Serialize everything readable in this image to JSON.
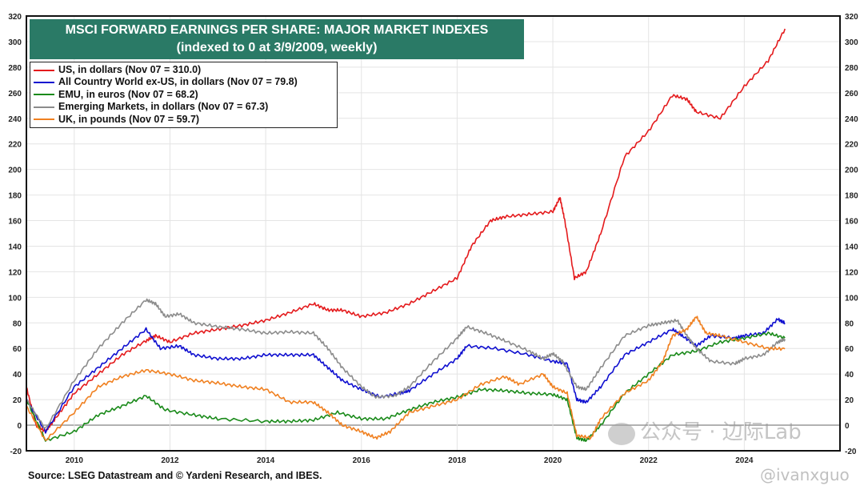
{
  "chart_data": {
    "type": "line",
    "title": "MSCI FORWARD EARNINGS PER SHARE: MAJOR MARKET INDEXES",
    "subtitle": "(indexed to 0 at 3/9/2009, weekly)",
    "xlabel": "",
    "ylabel": "",
    "xlim": [
      2009,
      2026
    ],
    "ylim": [
      -20,
      320
    ],
    "x_ticks": [
      "2010",
      "2012",
      "2014",
      "2016",
      "2018",
      "2020",
      "2022",
      "2024"
    ],
    "y_ticks": [
      -20,
      0,
      20,
      40,
      60,
      80,
      100,
      120,
      140,
      160,
      180,
      200,
      220,
      240,
      260,
      280,
      300,
      320
    ],
    "grid": true,
    "legend_placement": "top-left",
    "series": [
      {
        "name": "US, in dollars (Nov 07 = 310.0)",
        "color": "#e41a1c",
        "x": [
          2009.0,
          2009.2,
          2009.4,
          2009.6,
          2010,
          2010.5,
          2011,
          2011.5,
          2011.7,
          2012,
          2012.5,
          2013,
          2013.5,
          2014,
          2014.5,
          2015,
          2015.3,
          2015.6,
          2016,
          2016.5,
          2017,
          2017.5,
          2018,
          2018.3,
          2018.7,
          2019,
          2019.5,
          2020,
          2020.15,
          2020.25,
          2020.45,
          2020.7,
          2021,
          2021.5,
          2022,
          2022.5,
          2022.8,
          2023,
          2023.5,
          2024,
          2024.5,
          2024.85
        ],
        "values": [
          30,
          0,
          -5,
          5,
          25,
          40,
          55,
          66,
          70,
          65,
          72,
          75,
          78,
          82,
          88,
          95,
          90,
          90,
          85,
          88,
          95,
          105,
          115,
          140,
          160,
          163,
          165,
          167,
          178,
          160,
          115,
          120,
          150,
          210,
          230,
          258,
          255,
          245,
          240,
          265,
          285,
          310
        ]
      },
      {
        "name": "All Country World ex-US, in dollars (Nov 07 = 79.8)",
        "color": "#1010d0",
        "x": [
          2009.0,
          2009.4,
          2010,
          2010.5,
          2011,
          2011.5,
          2011.8,
          2012.2,
          2012.5,
          2013,
          2013.5,
          2014,
          2014.5,
          2015,
          2015.3,
          2015.6,
          2016,
          2016.4,
          2016.8,
          2017,
          2017.5,
          2018,
          2018.2,
          2018.8,
          2019.5,
          2020,
          2020.3,
          2020.5,
          2020.7,
          2021,
          2021.5,
          2022,
          2022.5,
          2022.7,
          2023,
          2023.3,
          2023.8,
          2024,
          2024.4,
          2024.7,
          2024.85
        ],
        "values": [
          20,
          -5,
          30,
          45,
          60,
          75,
          60,
          62,
          55,
          52,
          52,
          55,
          55,
          55,
          45,
          35,
          28,
          22,
          25,
          27,
          40,
          52,
          62,
          60,
          55,
          50,
          48,
          20,
          18,
          30,
          55,
          65,
          75,
          70,
          62,
          70,
          68,
          70,
          72,
          83,
          79.8
        ]
      },
      {
        "name": "EMU, in euros (Nov 07 = 68.2)",
        "color": "#1a8a1a",
        "x": [
          2009.0,
          2009.4,
          2010,
          2010.5,
          2011,
          2011.5,
          2011.9,
          2012.5,
          2013,
          2014,
          2014.5,
          2015,
          2015.5,
          2016,
          2016.5,
          2017,
          2017.5,
          2018,
          2018.5,
          2019,
          2019.5,
          2020,
          2020.3,
          2020.5,
          2020.7,
          2021,
          2021.5,
          2022,
          2022.5,
          2023,
          2023.5,
          2024,
          2024.5,
          2024.85
        ],
        "values": [
          20,
          -12,
          -5,
          8,
          15,
          23,
          12,
          8,
          5,
          3,
          3,
          4,
          10,
          5,
          5,
          12,
          18,
          22,
          28,
          27,
          25,
          24,
          20,
          -10,
          -12,
          0,
          25,
          40,
          55,
          58,
          65,
          68,
          72,
          68.2
        ]
      },
      {
        "name": "Emerging Markets, in dollars (Nov 07 = 67.3)",
        "color": "#8c8c8c",
        "x": [
          2009.0,
          2009.4,
          2010,
          2010.5,
          2011,
          2011.5,
          2011.7,
          2011.9,
          2012.2,
          2012.5,
          2013,
          2013.5,
          2014,
          2014.5,
          2015,
          2015.3,
          2015.6,
          2016,
          2016.3,
          2016.7,
          2017,
          2017.5,
          2018,
          2018.2,
          2018.6,
          2019,
          2019.5,
          2019.8,
          2020,
          2020.2,
          2020.5,
          2020.7,
          2021,
          2021.5,
          2022,
          2022.3,
          2022.6,
          2022.8,
          2023,
          2023.3,
          2023.8,
          2024,
          2024.4,
          2024.7,
          2024.85
        ],
        "values": [
          20,
          -3,
          35,
          60,
          80,
          98,
          95,
          85,
          87,
          80,
          77,
          75,
          72,
          73,
          72,
          60,
          45,
          30,
          22,
          23,
          30,
          50,
          68,
          77,
          72,
          66,
          58,
          52,
          56,
          50,
          30,
          28,
          45,
          70,
          78,
          80,
          82,
          70,
          60,
          50,
          48,
          52,
          55,
          65,
          67.3
        ]
      },
      {
        "name": "UK, in pounds (Nov 07 = 59.7)",
        "color": "#f08020",
        "x": [
          2009.0,
          2009.4,
          2010,
          2010.5,
          2011,
          2011.5,
          2012,
          2012.5,
          2013,
          2013.5,
          2014,
          2014.5,
          2015,
          2015.3,
          2015.6,
          2016,
          2016.3,
          2016.6,
          2017,
          2017.5,
          2018,
          2018.5,
          2019,
          2019.3,
          2019.8,
          2020,
          2020.3,
          2020.5,
          2020.8,
          2021,
          2021.5,
          2022,
          2022.3,
          2022.5,
          2022.8,
          2023,
          2023.2,
          2023.5,
          2024,
          2024.5,
          2024.85
        ],
        "values": [
          15,
          -12,
          10,
          30,
          38,
          43,
          40,
          35,
          33,
          30,
          28,
          18,
          18,
          10,
          0,
          -5,
          -10,
          -5,
          10,
          15,
          20,
          32,
          38,
          32,
          40,
          30,
          25,
          -8,
          -10,
          5,
          25,
          35,
          50,
          70,
          75,
          85,
          72,
          70,
          65,
          60,
          59.7
        ]
      }
    ]
  },
  "source": "Source: LSEG Datastream and © Yardeni Research, and IBES.",
  "watermark": {
    "line1": "公众号 · 边际Lab",
    "line2": "@ivanxguo"
  },
  "colors": {
    "title_bg": "#2a7a66"
  }
}
